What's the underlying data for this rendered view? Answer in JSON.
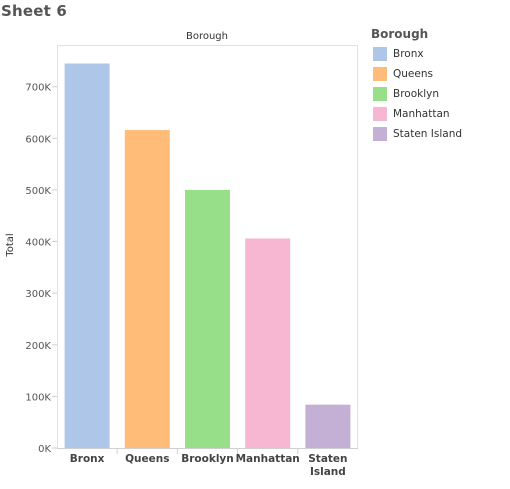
{
  "sheet": {
    "title": "Sheet 6"
  },
  "chart_data": {
    "type": "bar",
    "column_header": "Borough",
    "ylabel": "Total",
    "ylim": [
      0,
      780000
    ],
    "yticks": [
      {
        "value": 0,
        "label": "0K"
      },
      {
        "value": 100000,
        "label": "100K"
      },
      {
        "value": 200000,
        "label": "200K"
      },
      {
        "value": 300000,
        "label": "300K"
      },
      {
        "value": 400000,
        "label": "400K"
      },
      {
        "value": 500000,
        "label": "500K"
      },
      {
        "value": 600000,
        "label": "600K"
      },
      {
        "value": 700000,
        "label": "700K"
      }
    ],
    "categories": [
      "Bronx",
      "Queens",
      "Brooklyn",
      "Manhattan",
      "Staten Island"
    ],
    "values": [
      745000,
      616000,
      500000,
      406000,
      84000
    ],
    "colors": [
      "#aec7e8",
      "#ffbb78",
      "#98df8a",
      "#f7b6d2",
      "#c5b0d5"
    ],
    "legend": {
      "title": "Borough",
      "position": "right",
      "items": [
        {
          "label": "Bronx",
          "color": "#aec7e8"
        },
        {
          "label": "Queens",
          "color": "#ffbb78"
        },
        {
          "label": "Brooklyn",
          "color": "#98df8a"
        },
        {
          "label": "Manhattan",
          "color": "#f7b6d2"
        },
        {
          "label": "Staten Island",
          "color": "#c5b0d5"
        }
      ]
    },
    "grid": false
  }
}
